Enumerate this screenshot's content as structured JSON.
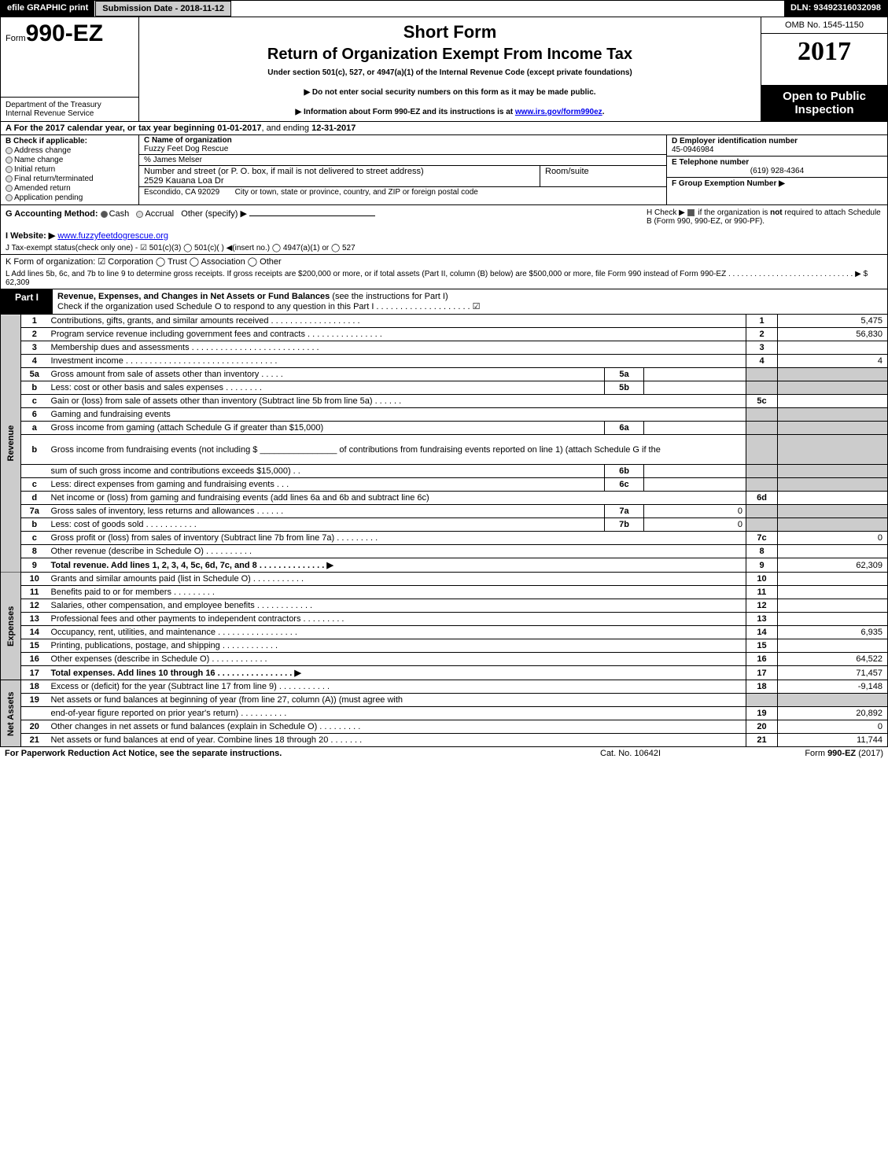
{
  "topbar": {
    "efile": "efile GRAPHIC print",
    "submission": "Submission Date - 2018-11-12",
    "dln": "DLN: 93492316032098"
  },
  "header": {
    "form_prefix": "Form",
    "form_no": "990-EZ",
    "dept1": "Department of the Treasury",
    "dept2": "Internal Revenue Service",
    "title1": "Short Form",
    "title2": "Return of Organization Exempt From Income Tax",
    "subtitle": "Under section 501(c), 527, or 4947(a)(1) of the Internal Revenue Code (except private foundations)",
    "note1": "▶ Do not enter social security numbers on this form as it may be made public.",
    "note2": "▶ Information about Form 990-EZ and its instructions is at ",
    "note2_link": "www.irs.gov/form990ez",
    "omb": "OMB No. 1545-1150",
    "year": "2017",
    "open1": "Open to Public",
    "open2": "Inspection"
  },
  "secA": {
    "prefix": "A  For the 2017 calendar year, or tax year beginning ",
    "begin": "01-01-2017",
    "mid": ", and ending ",
    "end": "12-31-2017"
  },
  "colB": {
    "hdr": "B  Check if applicable:",
    "opts": [
      "Address change",
      "Name change",
      "Initial return",
      "Final return/terminated",
      "Amended return",
      "Application pending"
    ]
  },
  "colC": {
    "name_lbl": "C Name of organization",
    "name": "Fuzzy Feet Dog Rescue",
    "care": "% James Melser",
    "addr_lbl": "Number and street (or P. O. box, if mail is not delivered to street address)",
    "addr": "2529 Kauana Loa Dr",
    "room_lbl": "Room/suite",
    "city_lbl": "City or town, state or province, country, and ZIP or foreign postal code",
    "city": "Escondido, CA  92029"
  },
  "colD": {
    "d_lbl": "D Employer identification number",
    "d_val": "45-0946984",
    "e_lbl": "E Telephone number",
    "e_val": "(619) 928-4364",
    "f_lbl": "F Group Exemption Number   ▶"
  },
  "rowG": {
    "g": "G Accounting Method:   ",
    "g_cash": "Cash",
    "g_accr": "Accrual",
    "g_other": "Other (specify) ▶",
    "h1": "H  Check ▶  ",
    "h2": "  if the organization is ",
    "h_not": "not",
    "h3": " required to attach Schedule B (Form 990, 990-EZ, or 990-PF)."
  },
  "rowI": {
    "lbl": "I Website: ▶",
    "url": "www.fuzzyfeetdogrescue.org"
  },
  "rowJ": "J Tax-exempt status(check only one) -   ☑ 501(c)(3)   ◯ 501(c)(  ) ◀(insert no.)   ◯ 4947(a)(1) or   ◯ 527",
  "rowK": "K Form of organization:   ☑ Corporation   ◯ Trust   ◯ Association   ◯ Other  ",
  "rowL": {
    "txt": "L Add lines 5b, 6c, and 7b to line 9 to determine gross receipts. If gross receipts are $200,000 or more, or if total assets (Part II, column (B) below) are $500,000 or more, file Form 990 instead of Form 990-EZ  .  .  .  .  .  .  .  .  .  .  .  .  .  .  .  .  .  .  .  .  .  .  .  .  .  .  .  .  .  ▶ ",
    "amt": "$ 62,309"
  },
  "part1": {
    "lbl": "Part I",
    "title": "Revenue, Expenses, and Changes in Net Assets or Fund Balances ",
    "inst": "(see the instructions for Part I)",
    "check": "Check if the organization used Schedule O to respond to any question in this Part I .  .  .  .  .  .  .  .  .  .  .  .  .  .  .  .  .  .  .  .    ☑"
  },
  "sides": {
    "rev": "Revenue",
    "exp": "Expenses",
    "net": "Net Assets"
  },
  "rows": [
    {
      "side": "rev",
      "ln": "1",
      "desc": "Contributions, gifts, grants, and similar amounts received  .  .  .  .  .  .  .  .  .  .  .  .  .  .  .  .  .  .  .",
      "box": "1",
      "val": "5,475"
    },
    {
      "side": "rev",
      "ln": "2",
      "desc": "Program service revenue including government fees and contracts  .  .  .  .  .  .  .  .  .  .  .  .  .  .  .  .",
      "box": "2",
      "val": "56,830"
    },
    {
      "side": "rev",
      "ln": "3",
      "desc": "Membership dues and assessments  .  .  .  .  .  .  .  .  .  .  .  .  .  .  .  .  .  .  .  .  .  .  .  .  .  .  .",
      "box": "3",
      "val": ""
    },
    {
      "side": "rev",
      "ln": "4",
      "desc": "Investment income  .  .  .  .  .  .  .  .  .  .  .  .  .  .  .  .  .  .  .  .  .  .  .  .  .  .  .  .  .  .  .  .",
      "box": "4",
      "val": "4"
    },
    {
      "side": "rev",
      "ln": "5a",
      "desc": "Gross amount from sale of assets other than inventory  .  .  .  .  .",
      "mid": "5a",
      "midv": "",
      "grey": true
    },
    {
      "side": "rev",
      "ln": "b",
      "desc": "Less: cost or other basis and sales expenses  .  .  .  .  .  .  .  .",
      "mid": "5b",
      "midv": "",
      "grey": true
    },
    {
      "side": "rev",
      "ln": "c",
      "desc": "Gain or (loss) from sale of assets other than inventory (Subtract line 5b from line 5a)         .    .    .    .    .    .",
      "box": "5c",
      "val": ""
    },
    {
      "side": "rev",
      "ln": "6",
      "desc": "Gaming and fundraising events",
      "grey": true
    },
    {
      "side": "rev",
      "ln": "a",
      "desc": "Gross income from gaming (attach Schedule G if greater than $15,000)",
      "mid": "6a",
      "midv": "",
      "grey": true
    },
    {
      "side": "rev",
      "ln": "b",
      "desc": "Gross income from fundraising events (not including $ ________________ of contributions from fundraising events reported on line 1) (attach Schedule G if the",
      "grey": true,
      "tall": true
    },
    {
      "side": "rev",
      "ln": "",
      "desc": "sum of such gross income and contributions exceeds $15,000)       .    .",
      "mid": "6b",
      "midv": "",
      "grey": true
    },
    {
      "side": "rev",
      "ln": "c",
      "desc": "Less: direct expenses from gaming and fundraising events       .    .    .",
      "mid": "6c",
      "midv": "",
      "grey": true
    },
    {
      "side": "rev",
      "ln": "d",
      "desc": "Net income or (loss) from gaming and fundraising events (add lines 6a and 6b and subtract line 6c)",
      "box": "6d",
      "val": ""
    },
    {
      "side": "rev",
      "ln": "7a",
      "desc": "Gross sales of inventory, less returns and allowances          .    .    .    .    .    .",
      "mid": "7a",
      "midv": "0",
      "grey": true
    },
    {
      "side": "rev",
      "ln": "b",
      "desc": "Less: cost of goods sold                 .    .    .    .    .    .    .    .    .    .    .",
      "mid": "7b",
      "midv": "0",
      "grey": true
    },
    {
      "side": "rev",
      "ln": "c",
      "desc": "Gross profit or (loss) from sales of inventory (Subtract line 7b from line 7a)         .    .    .    .    .    .    .    .    .",
      "box": "7c",
      "val": "0"
    },
    {
      "side": "rev",
      "ln": "8",
      "desc": "Other revenue (describe in Schedule O)         .    .    .    .    .    .    .    .    .    .",
      "box": "8",
      "val": ""
    },
    {
      "side": "rev",
      "ln": "9",
      "desc": "Total revenue. Add lines 1, 2, 3, 4, 5c, 6d, 7c, and 8        .    .    .    .    .    .    .    .    .    .    .    .    .    .  ▶",
      "box": "9",
      "val": "62,309",
      "bold": true
    },
    {
      "side": "exp",
      "ln": "10",
      "desc": "Grants and similar amounts paid (list in Schedule O)         .    .    .    .    .    .    .    .    .    .    .",
      "box": "10",
      "val": ""
    },
    {
      "side": "exp",
      "ln": "11",
      "desc": "Benefits paid to or for members         .    .    .    .    .    .    .    .    .",
      "box": "11",
      "val": ""
    },
    {
      "side": "exp",
      "ln": "12",
      "desc": "Salaries, other compensation, and employee benefits         .    .    .    .    .    .    .    .    .    .    .    .",
      "box": "12",
      "val": ""
    },
    {
      "side": "exp",
      "ln": "13",
      "desc": "Professional fees and other payments to independent contractors         .    .    .    .    .    .    .    .    .",
      "box": "13",
      "val": ""
    },
    {
      "side": "exp",
      "ln": "14",
      "desc": "Occupancy, rent, utilities, and maintenance       .    .    .    .    .    .    .    .    .    .    .    .    .    .    .    .    .",
      "box": "14",
      "val": "6,935"
    },
    {
      "side": "exp",
      "ln": "15",
      "desc": "Printing, publications, postage, and shipping         .    .    .    .    .    .    .    .    .    .    .    .",
      "box": "15",
      "val": ""
    },
    {
      "side": "exp",
      "ln": "16",
      "desc": "Other expenses (describe in Schedule O)         .    .    .    .    .    .    .    .    .    .    .    .",
      "box": "16",
      "val": "64,522"
    },
    {
      "side": "exp",
      "ln": "17",
      "desc": "Total expenses. Add lines 10 through 16        .    .    .    .    .    .    .    .    .    .    .    .    .    .    .    .  ▶",
      "box": "17",
      "val": "71,457",
      "bold": true
    },
    {
      "side": "net",
      "ln": "18",
      "desc": "Excess or (deficit) for the year (Subtract line 17 from line 9)         .    .    .    .    .    .    .    .    .    .    .",
      "box": "18",
      "val": "-9,148"
    },
    {
      "side": "net",
      "ln": "19",
      "desc": "Net assets or fund balances at beginning of year (from line 27, column (A)) (must agree with",
      "grey": true
    },
    {
      "side": "net",
      "ln": "",
      "desc": "end-of-year figure reported on prior year's return)         .    .    .    .    .    .    .    .    .    .",
      "box": "19",
      "val": "20,892"
    },
    {
      "side": "net",
      "ln": "20",
      "desc": "Other changes in net assets or fund balances (explain in Schedule O)         .    .    .    .    .    .    .    .    .",
      "box": "20",
      "val": "0"
    },
    {
      "side": "net",
      "ln": "21",
      "desc": "Net assets or fund balances at end of year. Combine lines 18 through 20         .    .    .    .    .    .    .",
      "box": "21",
      "val": "11,744"
    }
  ],
  "footer": {
    "l": "For Paperwork Reduction Act Notice, see the separate instructions.",
    "c": "Cat. No. 10642I",
    "r": "Form 990-EZ (2017)"
  },
  "colors": {
    "black": "#000000",
    "grey": "#cccccc",
    "link": "#0000ee"
  }
}
